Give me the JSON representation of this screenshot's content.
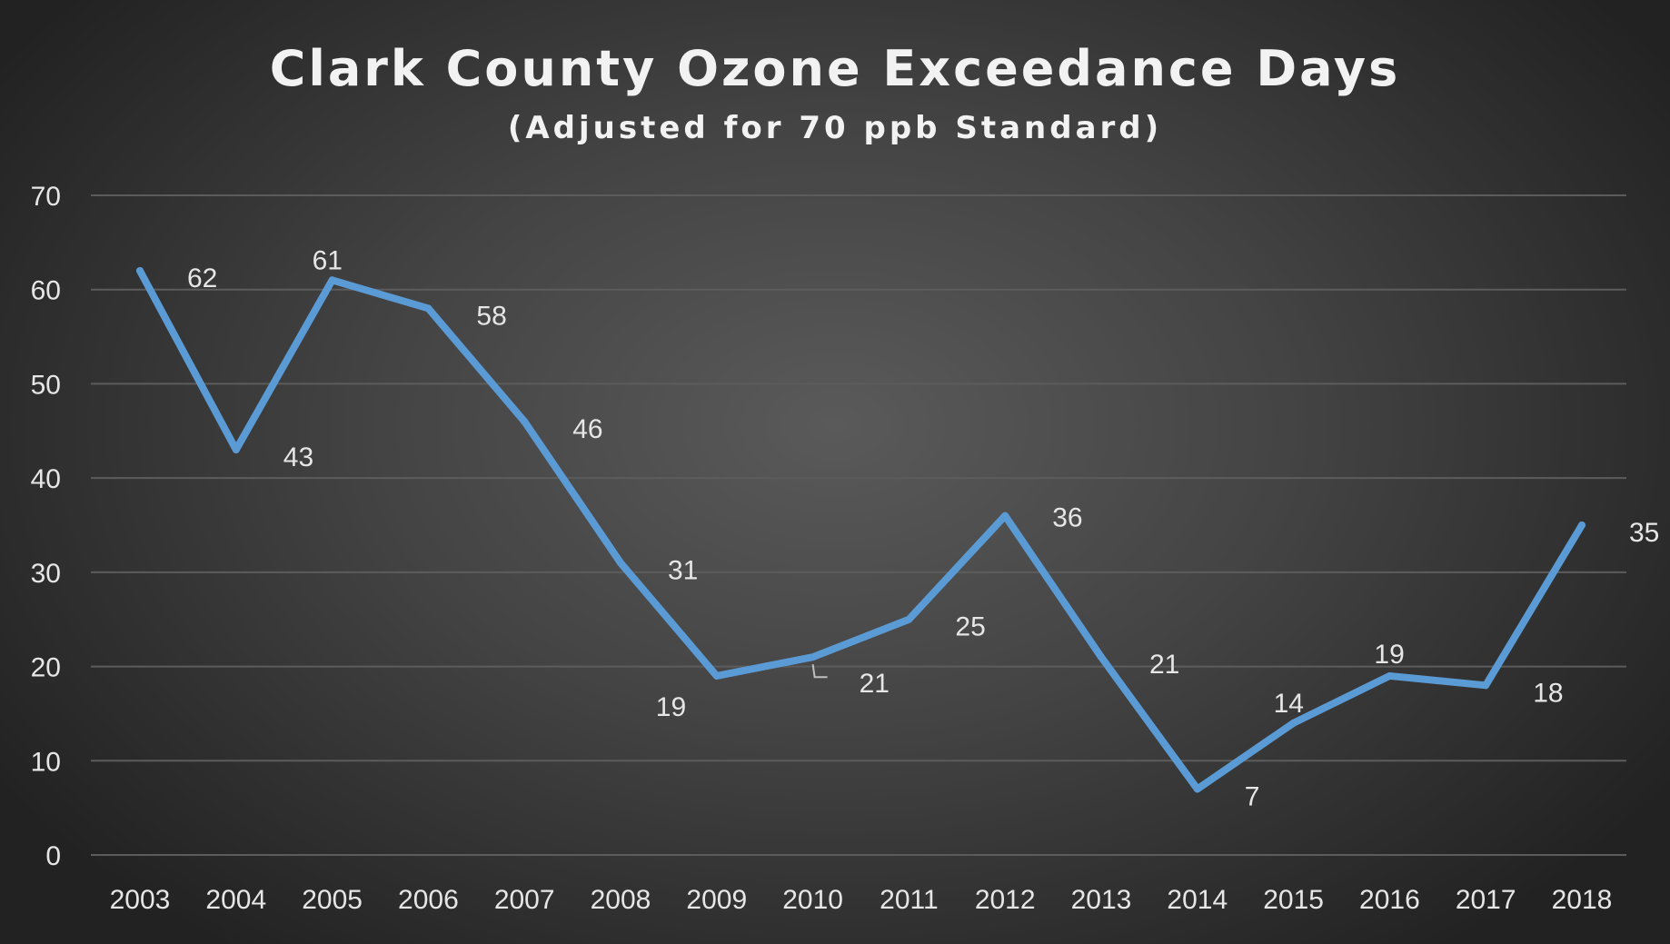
{
  "chart_data": {
    "type": "line",
    "title": "Clark County Ozone Exceedance Days",
    "subtitle": "(Adjusted for 70 ppb Standard)",
    "xlabel": "",
    "ylabel": "",
    "categories": [
      "2003",
      "2004",
      "2005",
      "2006",
      "2007",
      "2008",
      "2009",
      "2010",
      "2011",
      "2012",
      "2013",
      "2014",
      "2015",
      "2016",
      "2017",
      "2018"
    ],
    "series": [
      {
        "name": "Ozone Exceedance Days",
        "values": [
          62,
          43,
          61,
          58,
          46,
          31,
          19,
          21,
          25,
          36,
          21,
          7,
          14,
          19,
          18,
          35
        ],
        "color": "#5b9bd5"
      }
    ],
    "ylim": [
      0,
      70
    ],
    "yticks": [
      0,
      10,
      20,
      30,
      40,
      50,
      60,
      70
    ],
    "grid": true,
    "legend": "none"
  }
}
